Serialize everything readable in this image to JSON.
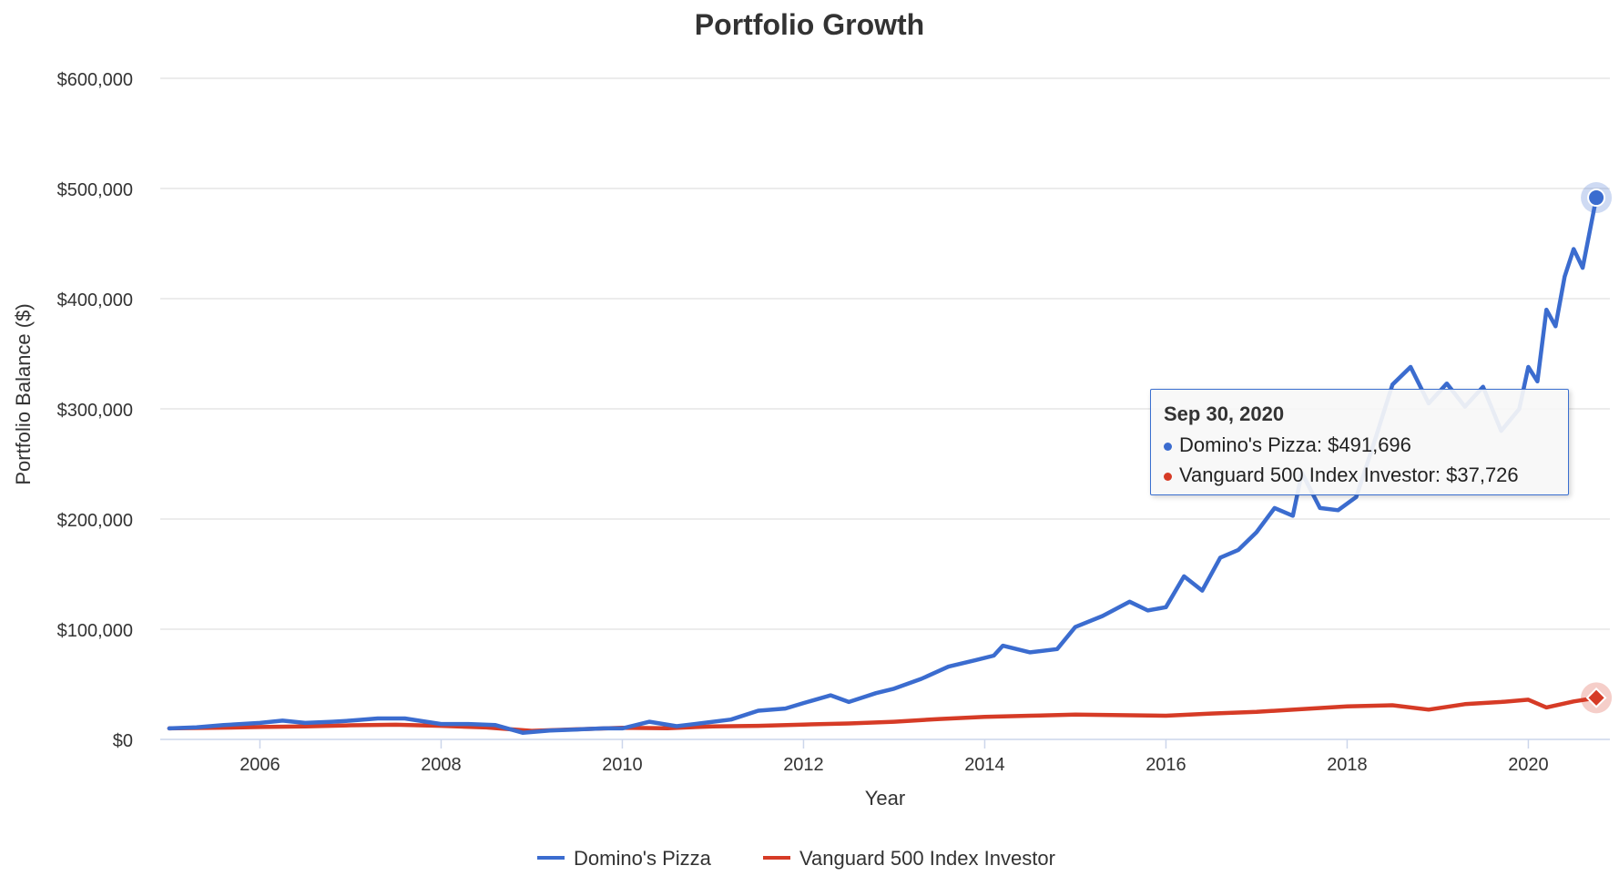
{
  "chart_data": {
    "type": "line",
    "title": "Portfolio Growth",
    "xlabel": "Year",
    "ylabel": "Portfolio Balance ($)",
    "ylim": [
      0,
      600000
    ],
    "xlim": [
      2004.9,
      2020.9
    ],
    "y_ticks": [
      "$0",
      "$100,000",
      "$200,000",
      "$300,000",
      "$400,000",
      "$500,000",
      "$600,000"
    ],
    "x_ticks": [
      "2006",
      "2008",
      "2010",
      "2012",
      "2014",
      "2016",
      "2018",
      "2020"
    ],
    "grid": true,
    "legend_position": "bottom",
    "series": [
      {
        "name": "Domino's Pizza",
        "color": "#3b6ccf",
        "points": [
          [
            2005.0,
            10000
          ],
          [
            2005.3,
            11000
          ],
          [
            2005.6,
            13000
          ],
          [
            2006.0,
            15000
          ],
          [
            2006.25,
            17000
          ],
          [
            2006.5,
            15000
          ],
          [
            2006.8,
            16000
          ],
          [
            2007.0,
            17000
          ],
          [
            2007.3,
            19000
          ],
          [
            2007.6,
            19000
          ],
          [
            2008.0,
            14000
          ],
          [
            2008.3,
            14000
          ],
          [
            2008.6,
            13000
          ],
          [
            2008.9,
            6000
          ],
          [
            2009.2,
            8000
          ],
          [
            2009.5,
            9000
          ],
          [
            2009.8,
            10000
          ],
          [
            2010.0,
            10000
          ],
          [
            2010.3,
            16000
          ],
          [
            2010.6,
            12000
          ],
          [
            2010.9,
            15000
          ],
          [
            2011.2,
            18000
          ],
          [
            2011.5,
            26000
          ],
          [
            2011.8,
            28000
          ],
          [
            2012.0,
            33000
          ],
          [
            2012.3,
            40000
          ],
          [
            2012.5,
            34000
          ],
          [
            2012.8,
            42000
          ],
          [
            2013.0,
            46000
          ],
          [
            2013.3,
            55000
          ],
          [
            2013.6,
            66000
          ],
          [
            2013.9,
            72000
          ],
          [
            2014.1,
            76000
          ],
          [
            2014.2,
            85000
          ],
          [
            2014.5,
            79000
          ],
          [
            2014.8,
            82000
          ],
          [
            2015.0,
            102000
          ],
          [
            2015.3,
            112000
          ],
          [
            2015.6,
            125000
          ],
          [
            2015.8,
            117000
          ],
          [
            2016.0,
            120000
          ],
          [
            2016.2,
            148000
          ],
          [
            2016.4,
            135000
          ],
          [
            2016.6,
            165000
          ],
          [
            2016.8,
            172000
          ],
          [
            2017.0,
            188000
          ],
          [
            2017.2,
            210000
          ],
          [
            2017.4,
            203000
          ],
          [
            2017.5,
            242000
          ],
          [
            2017.7,
            210000
          ],
          [
            2017.9,
            208000
          ],
          [
            2018.1,
            220000
          ],
          [
            2018.3,
            270000
          ],
          [
            2018.5,
            322000
          ],
          [
            2018.7,
            338000
          ],
          [
            2018.9,
            305000
          ],
          [
            2019.1,
            323000
          ],
          [
            2019.3,
            302000
          ],
          [
            2019.5,
            320000
          ],
          [
            2019.7,
            280000
          ],
          [
            2019.9,
            300000
          ],
          [
            2020.0,
            338000
          ],
          [
            2020.1,
            325000
          ],
          [
            2020.2,
            390000
          ],
          [
            2020.3,
            375000
          ],
          [
            2020.4,
            420000
          ],
          [
            2020.5,
            445000
          ],
          [
            2020.6,
            428000
          ],
          [
            2020.75,
            491696
          ]
        ]
      },
      {
        "name": "Vanguard 500 Index Investor",
        "color": "#d63b26",
        "points": [
          [
            2005.0,
            10000
          ],
          [
            2005.5,
            10500
          ],
          [
            2006.0,
            11200
          ],
          [
            2006.5,
            11800
          ],
          [
            2007.0,
            12800
          ],
          [
            2007.5,
            13300
          ],
          [
            2008.0,
            12300
          ],
          [
            2008.5,
            10800
          ],
          [
            2009.0,
            7800
          ],
          [
            2009.5,
            9200
          ],
          [
            2010.0,
            10500
          ],
          [
            2010.5,
            10200
          ],
          [
            2011.0,
            11800
          ],
          [
            2011.5,
            12300
          ],
          [
            2012.0,
            13500
          ],
          [
            2012.5,
            14500
          ],
          [
            2013.0,
            16000
          ],
          [
            2013.5,
            18500
          ],
          [
            2014.0,
            20500
          ],
          [
            2014.5,
            21500
          ],
          [
            2015.0,
            22500
          ],
          [
            2015.5,
            22000
          ],
          [
            2016.0,
            21500
          ],
          [
            2016.5,
            23500
          ],
          [
            2017.0,
            25000
          ],
          [
            2017.5,
            27500
          ],
          [
            2018.0,
            30000
          ],
          [
            2018.5,
            31000
          ],
          [
            2018.9,
            27000
          ],
          [
            2019.3,
            32000
          ],
          [
            2019.7,
            34000
          ],
          [
            2020.0,
            36000
          ],
          [
            2020.2,
            29000
          ],
          [
            2020.5,
            34500
          ],
          [
            2020.75,
            37726
          ]
        ]
      }
    ],
    "tooltip": {
      "date": "Sep 30, 2020",
      "items": [
        {
          "label": "Domino's Pizza: $491,696",
          "color": "#3b6ccf"
        },
        {
          "label": "Vanguard 500 Index Investor: $37,726",
          "color": "#d63b26"
        }
      ]
    }
  }
}
